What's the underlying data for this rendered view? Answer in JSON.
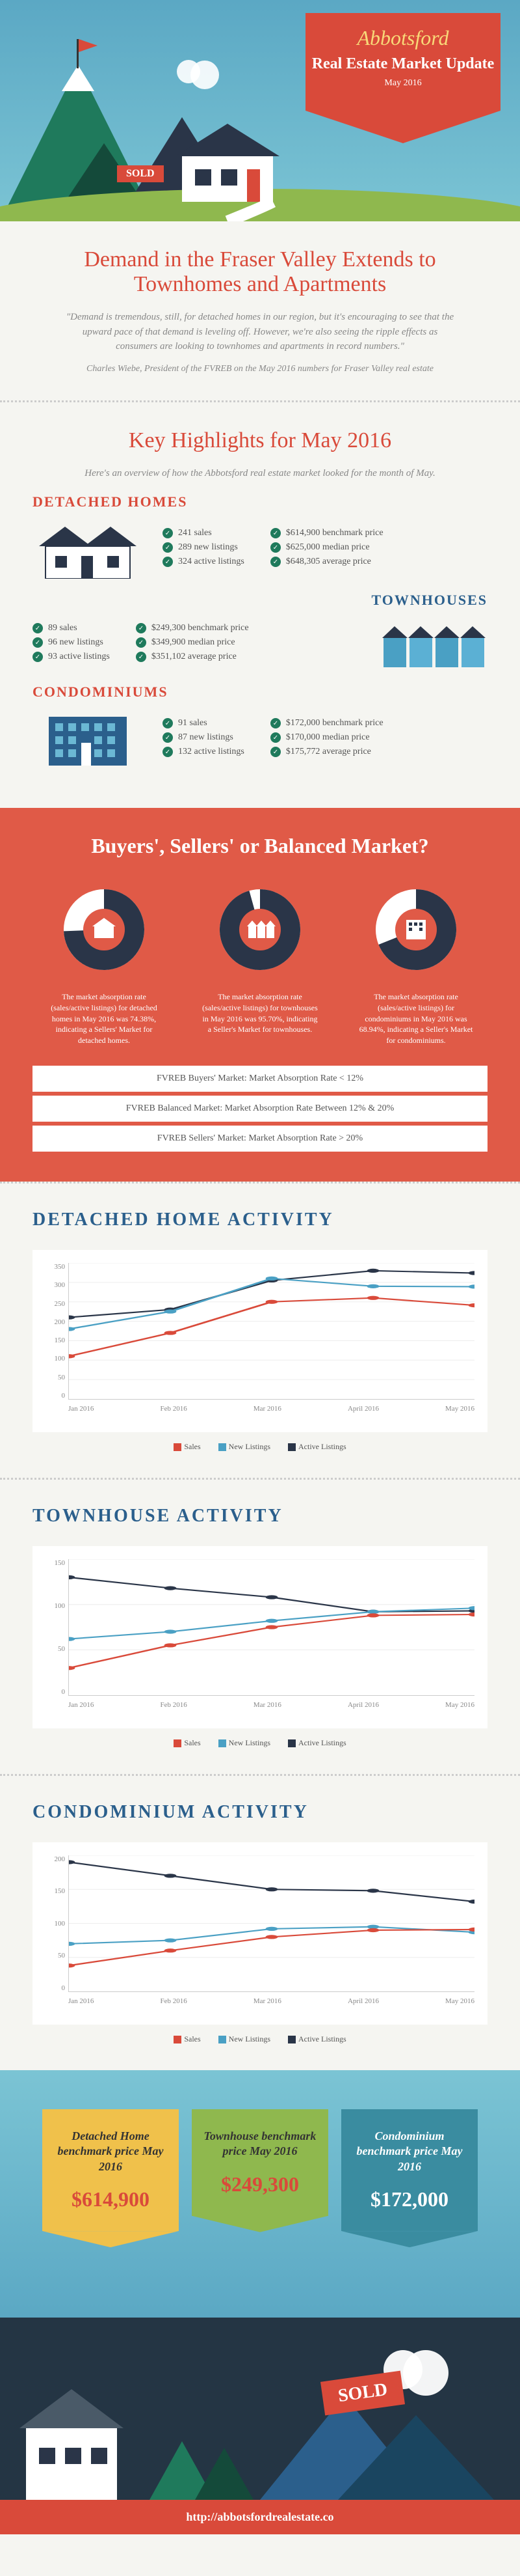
{
  "header": {
    "city": "Abbotsford",
    "title": "Real Estate Market Update",
    "date": "May 2016",
    "sold": "SOLD"
  },
  "demand": {
    "title": "Demand in the Fraser Valley Extends to Townhomes and Apartments",
    "quote": "\"Demand is tremendous, still, for detached homes in our region, but it's encouraging to see that the upward pace of that demand is leveling off. However, we're also seeing the ripple effects as consumers are looking to townhomes and apartments in record numbers.\"",
    "attribution": "Charles Wiebe, President of the FVREB on the May 2016 numbers for Fraser Valley real estate"
  },
  "highlights": {
    "title": "Key Highlights for May 2016",
    "intro": "Here's an overview of how the Abbotsford real estate market looked for the month of May.",
    "detached": {
      "label": "DETACHED HOMES",
      "col1": [
        "241 sales",
        "289 new listings",
        "324 active listings"
      ],
      "col2": [
        "$614,900 benchmark price",
        "$625,000 median price",
        "$648,305 average price"
      ]
    },
    "townhouses": {
      "label": "TOWNHOUSES",
      "col1": [
        "89 sales",
        "96 new listings",
        "93 active listings"
      ],
      "col2": [
        "$249,300 benchmark price",
        "$349,900 median price",
        "$351,102 average price"
      ]
    },
    "condos": {
      "label": "CONDOMINIUMS",
      "col1": [
        "91 sales",
        "87 new listings",
        "132 active listings"
      ],
      "col2": [
        "$172,000 benchmark price",
        "$170,000 median price",
        "$175,772 average price"
      ]
    }
  },
  "market": {
    "title": "Buyers', Sellers' or Balanced Market?",
    "donuts": [
      {
        "percent": 74.38,
        "text": "The market absorption rate (sales/active listings) for detached homes in May 2016 was 74.38%, indicating a Sellers' Market for detached homes."
      },
      {
        "percent": 95.7,
        "text": "The market absorption rate (sales/active listings) for townhouses in May 2016 was 95.70%, indicating a Seller's Market for townhouses."
      },
      {
        "percent": 68.94,
        "text": "The market absorption rate (sales/active listings) for condominiums in May 2016 was 68.94%, indicating a Seller's Market for condominiums."
      }
    ],
    "definitions": [
      "FVREB Buyers' Market: Market Absorption Rate < 12%",
      "FVREB Balanced Market: Market Absorption Rate Between 12% & 20%",
      "FVREB Sellers' Market: Market Absorption Rate > 20%"
    ],
    "pie_fill": "#2a3548",
    "pie_empty": "#ffffff"
  },
  "charts": {
    "series_colors": {
      "sales": "#d94a3a",
      "new_listings": "#4aa0c4",
      "active_listings": "#2a3548"
    },
    "legend": [
      "Sales",
      "New Listings",
      "Active Listings"
    ],
    "months": [
      "Jan 2016",
      "Feb 2016",
      "Mar 2016",
      "April 2016",
      "May 2016"
    ],
    "detached": {
      "title": "DETACHED HOME ACTIVITY",
      "ylim": [
        0,
        350
      ],
      "ytick_step": 50,
      "sales": [
        110,
        170,
        250,
        260,
        241
      ],
      "new_listings": [
        180,
        225,
        310,
        290,
        289
      ],
      "active_listings": [
        210,
        230,
        305,
        330,
        324
      ]
    },
    "townhouse": {
      "title": "TOWNHOUSE ACTIVITY",
      "ylim": [
        0,
        150
      ],
      "ytick_step": 50,
      "sales": [
        30,
        55,
        75,
        88,
        89
      ],
      "new_listings": [
        62,
        70,
        82,
        92,
        96
      ],
      "active_listings": [
        130,
        118,
        108,
        92,
        93
      ]
    },
    "condo": {
      "title": "CONDOMINIUM ACTIVITY",
      "ylim": [
        0,
        200
      ],
      "ytick_step": 50,
      "sales": [
        38,
        60,
        80,
        90,
        91
      ],
      "new_listings": [
        70,
        75,
        92,
        95,
        87
      ],
      "active_listings": [
        190,
        170,
        150,
        148,
        132
      ]
    }
  },
  "benchmark": {
    "cards": [
      {
        "label": "Detached Home benchmark price May 2016",
        "value": "$614,900",
        "color": "yellow"
      },
      {
        "label": "Townhouse benchmark price May 2016",
        "value": "$249,300",
        "color": "green"
      },
      {
        "label": "Condominium benchmark price May 2016",
        "value": "$172,000",
        "color": "teal"
      }
    ]
  },
  "footer": {
    "sold": "SOLD",
    "url": "http://abbotsfordrealestate.co"
  }
}
